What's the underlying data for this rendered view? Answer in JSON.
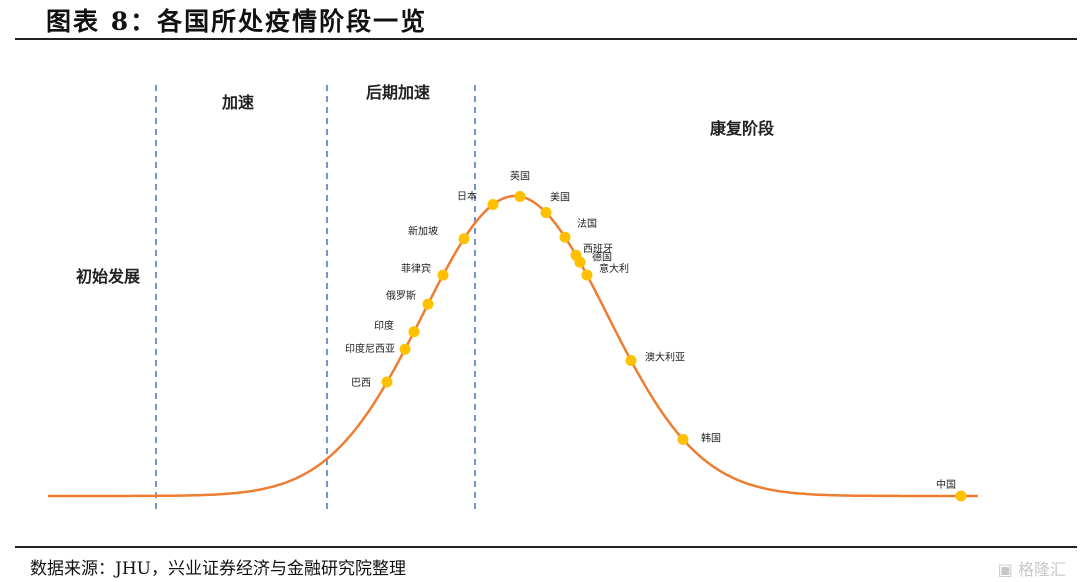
{
  "title": "图表 8：各国所处疫情阶段一览",
  "source": "数据来源：JHU，兴业证券经济与金融研究院整理",
  "watermark": "格隆汇",
  "chart_data": {
    "type": "line",
    "title": "图表 8：各国所处疫情阶段一览",
    "xlabel": "",
    "ylabel": "",
    "grid": false,
    "stages": [
      "初始发展",
      "加速",
      "后期加速",
      "康复阶段"
    ],
    "countries": [
      "巴西",
      "印度尼西亚",
      "印度",
      "俄罗斯",
      "菲律宾",
      "新加坡",
      "日本",
      "英国",
      "美国",
      "法国",
      "西班牙",
      "德国",
      "意大利",
      "澳大利亚",
      "韩国",
      "中国"
    ],
    "colors": {
      "curve": "#ED7D31",
      "marker": "#FFC000",
      "divider": "#4472C4"
    }
  }
}
